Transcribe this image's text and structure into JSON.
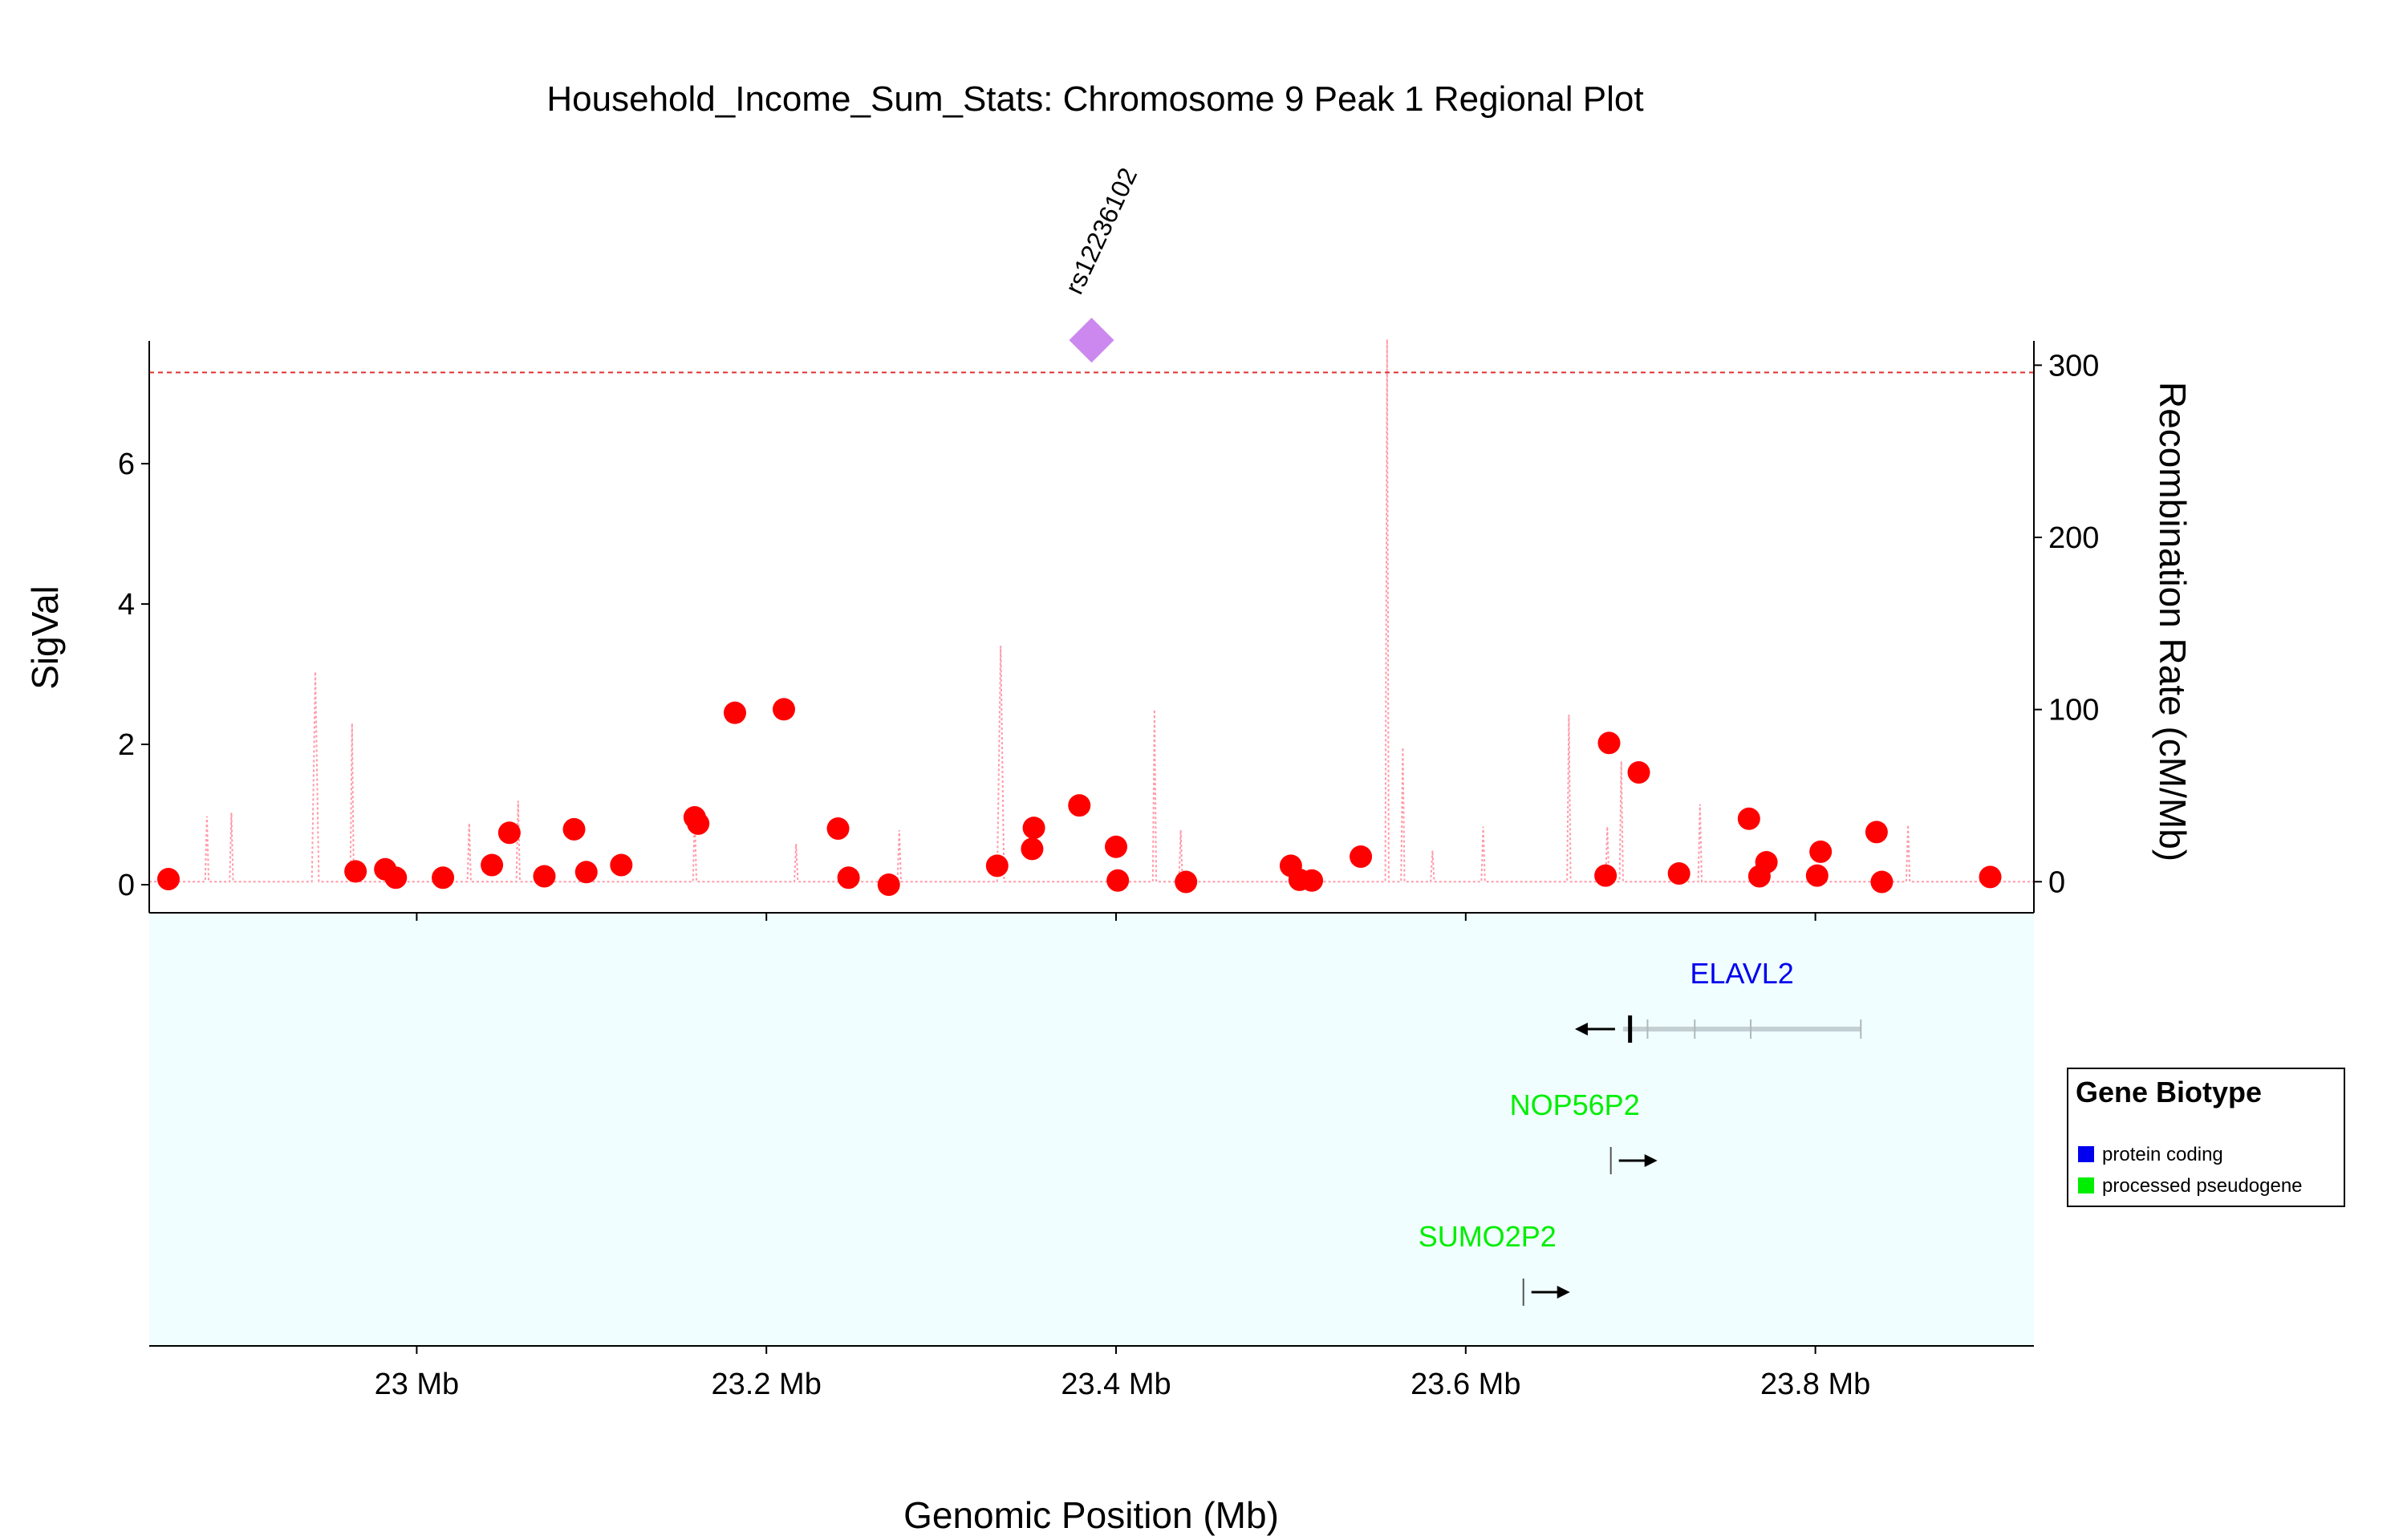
{
  "chart_data": {
    "type": "scatter",
    "title": "Household_Income_Sum_Stats: Chromosome 9 Peak 1 Regional Plot",
    "xlabel": "Genomic Position (Mb)",
    "ylabel": "SigVal",
    "y2label": "Recombination Rate (cM/Mb)",
    "xlim": [
      22.847,
      23.925
    ],
    "ylim": [
      -0.4,
      7.75
    ],
    "y2lim": [
      -18.04,
      314.13
    ],
    "x_ticks": [
      23.0,
      23.2,
      23.4,
      23.6,
      23.8
    ],
    "x_tick_labels": [
      "23 Mb",
      "23.2 Mb",
      "23.4 Mb",
      "23.6 Mb",
      "23.8 Mb"
    ],
    "y_ticks": [
      0,
      2,
      4,
      6
    ],
    "y_tick_labels": [
      "0",
      "2",
      "4",
      "6"
    ],
    "y2_ticks": [
      0,
      100,
      200,
      300
    ],
    "y2_tick_labels": [
      "0",
      "100",
      "200",
      "300"
    ],
    "significance_line": 7.3,
    "lead_snp": {
      "label": "rs12236102",
      "x": 23.386,
      "y": 7.76,
      "color": "#cc88ee"
    },
    "point_color": "#ff0000",
    "recomb_color": "#ff9aa8",
    "threshold_color": "#e03030",
    "gene_panel_bg": "#f0feff",
    "points": [
      [
        22.858,
        0.08
      ],
      [
        22.965,
        0.19
      ],
      [
        22.982,
        0.22
      ],
      [
        22.988,
        0.1
      ],
      [
        23.015,
        0.1
      ],
      [
        23.043,
        0.28
      ],
      [
        23.053,
        0.74
      ],
      [
        23.073,
        0.12
      ],
      [
        23.09,
        0.79
      ],
      [
        23.097,
        0.18
      ],
      [
        23.117,
        0.28
      ],
      [
        23.159,
        0.96
      ],
      [
        23.161,
        0.87
      ],
      [
        23.182,
        2.45
      ],
      [
        23.21,
        2.5
      ],
      [
        23.241,
        0.8
      ],
      [
        23.247,
        0.1
      ],
      [
        23.27,
        0.0
      ],
      [
        23.332,
        0.27
      ],
      [
        23.352,
        0.51
      ],
      [
        23.353,
        0.81
      ],
      [
        23.379,
        1.13
      ],
      [
        23.4,
        0.54
      ],
      [
        23.401,
        0.06
      ],
      [
        23.44,
        0.04
      ],
      [
        23.5,
        0.27
      ],
      [
        23.505,
        0.07
      ],
      [
        23.512,
        0.06
      ],
      [
        23.54,
        0.4
      ],
      [
        23.68,
        0.13
      ],
      [
        23.682,
        2.02
      ],
      [
        23.699,
        1.6
      ],
      [
        23.722,
        0.16
      ],
      [
        23.762,
        0.94
      ],
      [
        23.768,
        0.12
      ],
      [
        23.772,
        0.32
      ],
      [
        23.801,
        0.13
      ],
      [
        23.803,
        0.47
      ],
      [
        23.835,
        0.75
      ],
      [
        23.838,
        0.04
      ],
      [
        23.9,
        0.11
      ]
    ],
    "recombination": [
      [
        22.879,
        0
      ],
      [
        22.88,
        38
      ],
      [
        22.881,
        0
      ],
      [
        22.893,
        0
      ],
      [
        22.894,
        40
      ],
      [
        22.895,
        0
      ],
      [
        22.94,
        0
      ],
      [
        22.942,
        122
      ],
      [
        22.944,
        0
      ],
      [
        22.962,
        0
      ],
      [
        22.963,
        92
      ],
      [
        22.964,
        0
      ],
      [
        23.029,
        0
      ],
      [
        23.03,
        34
      ],
      [
        23.031,
        0
      ],
      [
        23.057,
        0
      ],
      [
        23.058,
        47
      ],
      [
        23.059,
        0
      ],
      [
        23.158,
        0
      ],
      [
        23.159,
        39
      ],
      [
        23.16,
        0
      ],
      [
        23.216,
        0
      ],
      [
        23.217,
        22
      ],
      [
        23.218,
        0
      ],
      [
        23.275,
        0
      ],
      [
        23.276,
        30
      ],
      [
        23.277,
        0
      ],
      [
        23.332,
        0
      ],
      [
        23.334,
        137
      ],
      [
        23.336,
        0
      ],
      [
        23.421,
        0
      ],
      [
        23.422,
        100
      ],
      [
        23.423,
        0
      ],
      [
        23.436,
        0
      ],
      [
        23.437,
        30
      ],
      [
        23.438,
        0
      ],
      [
        23.554,
        0
      ],
      [
        23.555,
        315
      ],
      [
        23.556,
        0
      ],
      [
        23.563,
        0
      ],
      [
        23.564,
        78
      ],
      [
        23.565,
        0
      ],
      [
        23.58,
        0
      ],
      [
        23.581,
        18
      ],
      [
        23.582,
        0
      ],
      [
        23.609,
        0
      ],
      [
        23.61,
        32
      ],
      [
        23.611,
        0
      ],
      [
        23.658,
        0
      ],
      [
        23.659,
        97
      ],
      [
        23.66,
        0
      ],
      [
        23.68,
        0
      ],
      [
        23.681,
        32
      ],
      [
        23.682,
        0
      ],
      [
        23.688,
        0
      ],
      [
        23.689,
        70
      ],
      [
        23.69,
        0
      ],
      [
        23.733,
        0
      ],
      [
        23.734,
        45
      ],
      [
        23.735,
        0
      ],
      [
        23.852,
        0
      ],
      [
        23.853,
        33
      ],
      [
        23.854,
        0
      ]
    ]
  },
  "genes": [
    {
      "name": "ELAVL2",
      "color": "#0000ee",
      "start": 23.69,
      "end": 23.826,
      "strand": "-",
      "row": 0,
      "exons": [
        23.694,
        23.704,
        23.731,
        23.763,
        23.826
      ]
    },
    {
      "name": "NOP56P2",
      "color": "#00ee00",
      "start": 23.683,
      "end": 23.685,
      "strand": "+",
      "row": 1,
      "exons": [
        23.683
      ]
    },
    {
      "name": "SUMO2P2",
      "color": "#00ee00",
      "start": 23.633,
      "end": 23.635,
      "strand": "+",
      "row": 2,
      "exons": [
        23.633
      ]
    }
  ],
  "legend": {
    "title": "Gene Biotype",
    "items": [
      {
        "label": "protein coding",
        "color": "#0000ee"
      },
      {
        "label": "processed pseudogene",
        "color": "#00ee00"
      }
    ]
  }
}
